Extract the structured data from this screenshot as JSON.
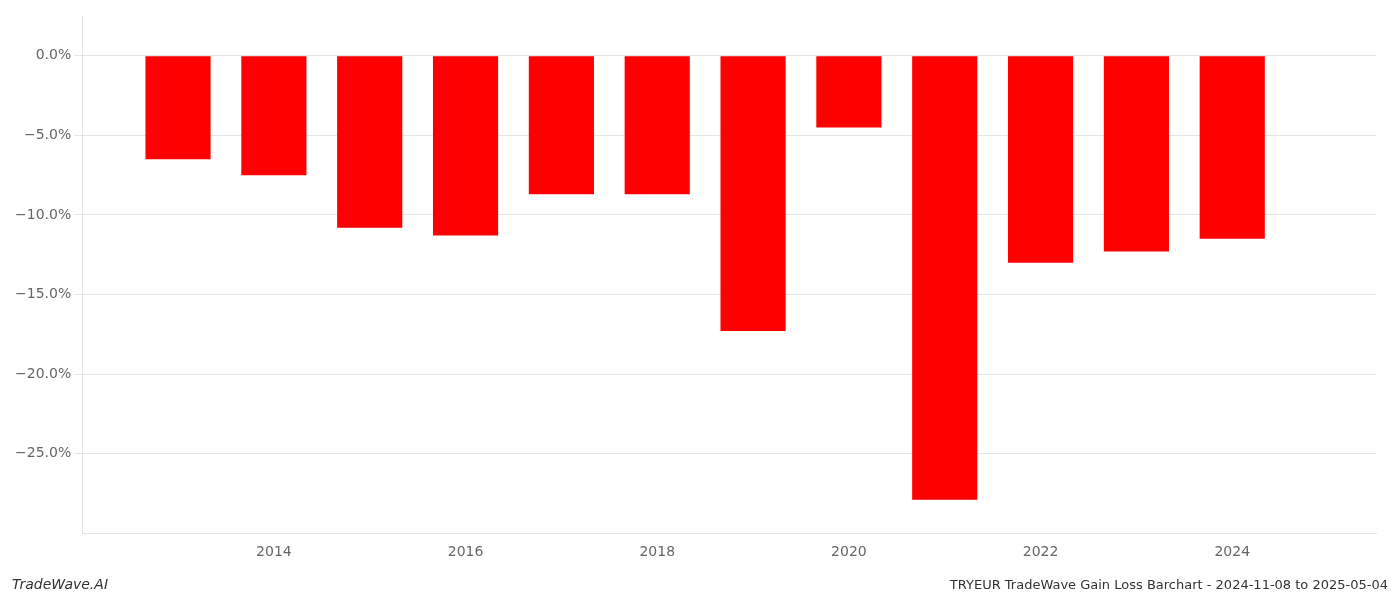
{
  "chart_data": {
    "type": "bar",
    "title": "TRYEUR TradeWave Gain Loss Barchart - 2024-11-08 to 2025-05-04",
    "annotations": [
      "TradeWave.AI"
    ],
    "x": [
      2013,
      2014,
      2015,
      2016,
      2017,
      2018,
      2019,
      2020,
      2021,
      2022,
      2023,
      2024
    ],
    "values": [
      -6.5,
      -7.5,
      -10.8,
      -11.3,
      -8.7,
      -8.7,
      -17.3,
      -4.5,
      -27.9,
      -13.0,
      -12.3,
      -11.5
    ],
    "color": "#ff0000",
    "xlim": [
      2012.0,
      2025.5
    ],
    "xticks": [
      2014,
      2016,
      2018,
      2020,
      2022,
      2024
    ],
    "ylim": [
      -30,
      2.5
    ],
    "yticks": [
      {
        "value": 0.0,
        "label": "0.0%"
      },
      {
        "value": -5.0,
        "label": "−5.0%"
      },
      {
        "value": -10.0,
        "label": "−10.0%"
      },
      {
        "value": -15.0,
        "label": "−15.0%"
      },
      {
        "value": -20.0,
        "label": "−20.0%"
      },
      {
        "value": -25.0,
        "label": "−25.0%"
      }
    ],
    "grid": "y"
  }
}
